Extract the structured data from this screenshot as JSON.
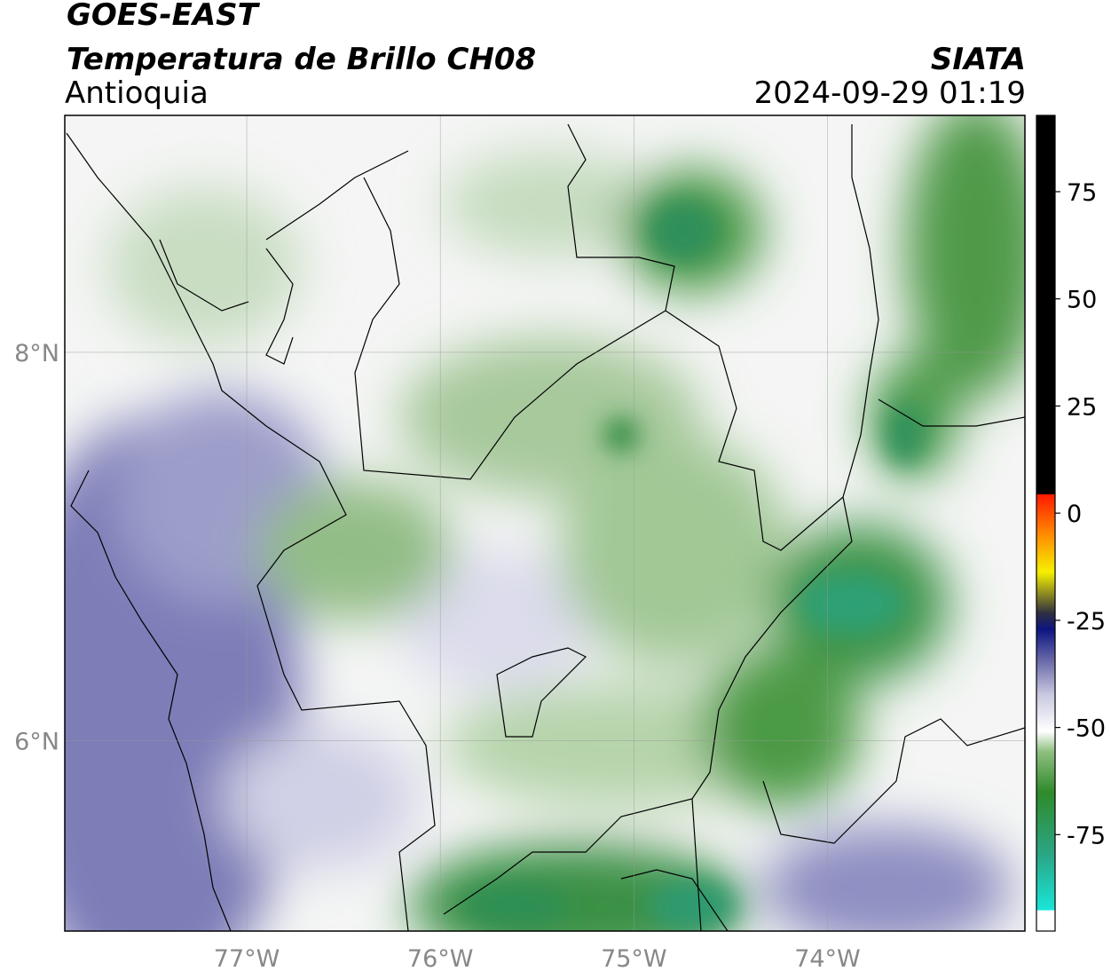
{
  "header": {
    "satellite": "GOES-EAST",
    "product": "Temperatura de Brillo CH08",
    "region": "Antioquia",
    "source": "SIATA",
    "datetime": "2024-09-29 01:19"
  },
  "map": {
    "lonlim": [
      -77.94,
      -72.98
    ],
    "latlim": [
      5.02,
      9.22
    ],
    "lat_ticks": [
      {
        "value": 8,
        "label": "8°N"
      },
      {
        "value": 6,
        "label": "6°N"
      }
    ],
    "lon_ticks": [
      {
        "value": -77,
        "label": "77°W"
      },
      {
        "value": -76,
        "label": "76°W"
      },
      {
        "value": -75,
        "label": "75°W"
      },
      {
        "value": -74,
        "label": "74°W"
      }
    ]
  },
  "colorbar": {
    "lim": [
      -97.5,
      92.8
    ],
    "ticks": [
      75,
      50,
      25,
      0,
      -25,
      -50,
      -75
    ]
  }
}
